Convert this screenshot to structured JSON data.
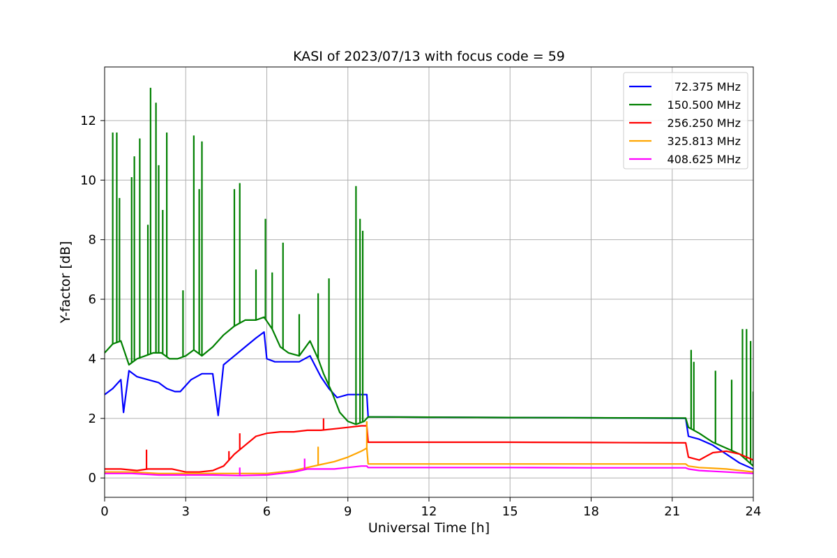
{
  "chart_data": {
    "type": "line",
    "title": "KASI of 2023/07/13 with focus code = 59",
    "xlabel": "Universal Time [h]",
    "ylabel": "Y-factor [dB]",
    "xlim": [
      0,
      24
    ],
    "ylim": [
      -0.65,
      13.8
    ],
    "xticks": [
      0,
      3,
      6,
      9,
      12,
      15,
      18,
      21,
      24
    ],
    "yticks": [
      0,
      2,
      4,
      6,
      8,
      10,
      12
    ],
    "grid": true,
    "legend_position": "top-right",
    "series": [
      {
        "name": "72.375 MHz",
        "color": "#0000ff",
        "x": [
          0,
          0.3,
          0.6,
          0.7,
          0.9,
          1.2,
          1.6,
          2.0,
          2.3,
          2.6,
          2.8,
          3.2,
          3.6,
          4.0,
          4.2,
          4.4,
          4.8,
          5.2,
          5.6,
          5.9,
          6.0,
          6.3,
          6.8,
          7.2,
          7.6,
          8.0,
          8.3,
          8.6,
          9.0,
          9.3,
          9.7,
          9.75,
          12,
          15,
          18,
          21.5,
          21.6,
          22.0,
          22.5,
          23.0,
          23.5,
          24
        ],
        "y": [
          2.8,
          3.0,
          3.3,
          2.2,
          3.6,
          3.4,
          3.3,
          3.2,
          3.0,
          2.9,
          2.9,
          3.3,
          3.5,
          3.5,
          2.1,
          3.8,
          4.1,
          4.4,
          4.7,
          4.9,
          4.0,
          3.9,
          3.9,
          3.9,
          4.1,
          3.4,
          3.0,
          2.7,
          2.8,
          2.8,
          2.8,
          2.05,
          2.04,
          2.03,
          2.02,
          2.0,
          1.4,
          1.3,
          1.1,
          0.8,
          0.5,
          0.3
        ]
      },
      {
        "name": "150.500 MHz",
        "color": "#008000",
        "x": [
          0,
          0.3,
          0.6,
          0.9,
          1.2,
          1.5,
          1.8,
          2.1,
          2.4,
          2.7,
          3.0,
          3.3,
          3.6,
          4.0,
          4.4,
          4.8,
          5.2,
          5.6,
          5.9,
          6.2,
          6.5,
          6.8,
          7.2,
          7.6,
          7.9,
          8.1,
          8.4,
          8.7,
          9.0,
          9.3,
          9.6,
          9.7,
          9.75,
          12,
          15,
          18,
          21.5,
          21.6,
          22.0,
          22.5,
          23.0,
          23.5,
          24
        ],
        "y": [
          4.2,
          4.5,
          4.6,
          3.8,
          4.0,
          4.1,
          4.2,
          4.2,
          4.0,
          4.0,
          4.1,
          4.3,
          4.1,
          4.4,
          4.8,
          5.1,
          5.3,
          5.3,
          5.4,
          5.0,
          4.4,
          4.2,
          4.1,
          4.6,
          4.0,
          3.5,
          2.9,
          2.2,
          1.9,
          1.8,
          1.9,
          2.0,
          2.05,
          2.04,
          2.03,
          2.02,
          2.01,
          1.7,
          1.5,
          1.2,
          1.0,
          0.8,
          0.4
        ],
        "spikes": [
          [
            0.3,
            11.6
          ],
          [
            0.45,
            11.6
          ],
          [
            0.55,
            9.4
          ],
          [
            1.0,
            10.1
          ],
          [
            1.1,
            10.8
          ],
          [
            1.3,
            11.4
          ],
          [
            1.6,
            8.5
          ],
          [
            1.7,
            13.1
          ],
          [
            1.9,
            12.6
          ],
          [
            2.0,
            10.5
          ],
          [
            2.15,
            9.0
          ],
          [
            2.3,
            11.6
          ],
          [
            2.9,
            6.3
          ],
          [
            3.3,
            11.5
          ],
          [
            3.5,
            9.7
          ],
          [
            3.6,
            11.3
          ],
          [
            4.8,
            9.7
          ],
          [
            5.0,
            9.9
          ],
          [
            5.6,
            7.0
          ],
          [
            5.95,
            8.7
          ],
          [
            6.2,
            6.9
          ],
          [
            6.6,
            7.9
          ],
          [
            7.2,
            5.5
          ],
          [
            7.9,
            6.2
          ],
          [
            8.3,
            6.7
          ],
          [
            9.3,
            9.8
          ],
          [
            9.45,
            8.7
          ],
          [
            9.55,
            8.3
          ],
          [
            21.7,
            4.3
          ],
          [
            21.8,
            3.9
          ],
          [
            22.6,
            3.6
          ],
          [
            23.2,
            3.3
          ],
          [
            23.6,
            5.0
          ],
          [
            23.75,
            5.0
          ],
          [
            23.9,
            4.6
          ],
          [
            24.0,
            2.9
          ]
        ]
      },
      {
        "name": "256.250 MHz",
        "color": "#ff0000",
        "x": [
          0,
          0.6,
          1.2,
          1.6,
          2.0,
          2.5,
          3.0,
          3.5,
          4.0,
          4.4,
          4.8,
          5.2,
          5.6,
          6.0,
          6.5,
          7.0,
          7.5,
          8.0,
          8.5,
          9.0,
          9.5,
          9.7,
          9.75,
          12,
          15,
          18,
          21.5,
          21.6,
          22.0,
          22.5,
          23.0,
          23.5,
          24
        ],
        "y": [
          0.3,
          0.3,
          0.25,
          0.3,
          0.3,
          0.3,
          0.2,
          0.2,
          0.25,
          0.4,
          0.8,
          1.1,
          1.4,
          1.5,
          1.55,
          1.55,
          1.6,
          1.6,
          1.65,
          1.7,
          1.75,
          1.75,
          1.2,
          1.2,
          1.2,
          1.19,
          1.18,
          0.7,
          0.6,
          0.85,
          0.9,
          0.8,
          0.6
        ],
        "spikes": [
          [
            1.55,
            0.95
          ],
          [
            4.6,
            0.9
          ],
          [
            5.0,
            1.5
          ],
          [
            8.1,
            2.0
          ],
          [
            9.7,
            1.9
          ]
        ]
      },
      {
        "name": "325.813 MHz",
        "color": "#ffa500",
        "x": [
          0,
          1.0,
          2.0,
          3.0,
          4.0,
          5.0,
          6.0,
          6.5,
          7.0,
          7.5,
          8.0,
          8.5,
          9.0,
          9.5,
          9.7,
          9.75,
          12,
          15,
          18,
          21.5,
          21.6,
          22.0,
          23.0,
          24
        ],
        "y": [
          0.2,
          0.2,
          0.15,
          0.15,
          0.15,
          0.15,
          0.15,
          0.2,
          0.25,
          0.35,
          0.45,
          0.55,
          0.7,
          0.9,
          1.0,
          0.47,
          0.47,
          0.47,
          0.47,
          0.47,
          0.4,
          0.35,
          0.3,
          0.2
        ],
        "spikes": [
          [
            7.9,
            1.05
          ],
          [
            9.7,
            1.9
          ]
        ]
      },
      {
        "name": "408.625 MHz",
        "color": "#ff00ff",
        "x": [
          0,
          1.0,
          2.0,
          3.0,
          4.0,
          5.0,
          6.0,
          6.5,
          7.0,
          7.5,
          8.0,
          8.5,
          9.0,
          9.5,
          9.7,
          9.75,
          12,
          15,
          18,
          21.5,
          21.6,
          22.0,
          23.0,
          24
        ],
        "y": [
          0.15,
          0.15,
          0.1,
          0.1,
          0.1,
          0.08,
          0.1,
          0.15,
          0.2,
          0.3,
          0.3,
          0.3,
          0.35,
          0.4,
          0.4,
          0.35,
          0.35,
          0.35,
          0.34,
          0.34,
          0.3,
          0.25,
          0.2,
          0.15
        ],
        "spikes": [
          [
            5.0,
            0.35
          ],
          [
            7.4,
            0.65
          ]
        ]
      }
    ]
  }
}
